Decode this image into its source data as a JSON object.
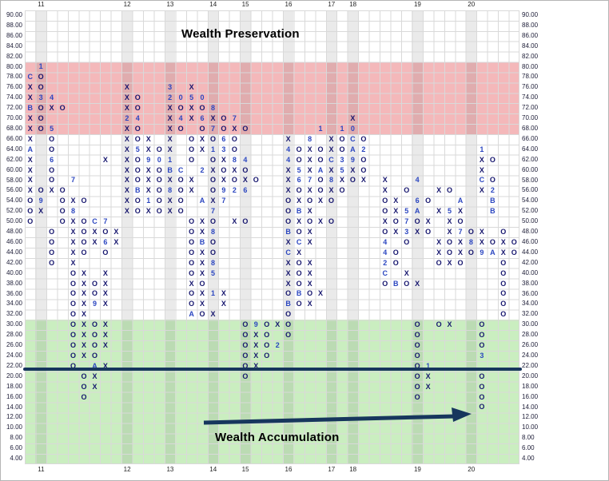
{
  "titles": {
    "top": "Wealth Preservation",
    "bottom": "Wealth Accumulation"
  },
  "colors": {
    "grid_line": "#d9d9d9",
    "mark_symbol": "#15156e",
    "mark_number": "#2b46c0",
    "preservation_band": "rgba(235,125,130,0.55)",
    "accumulation_band": "rgba(150,222,130,0.5)",
    "trend": "#17365d"
  },
  "chart_data": {
    "type": "point-and-figure",
    "box_size": 2,
    "price_top": 90,
    "price_bottom": 4,
    "zones": [
      {
        "name": "Wealth Preservation band",
        "from": 68,
        "to": 80,
        "color": "rgba(235,125,130,0.55)"
      },
      {
        "name": "Wealth Accumulation band",
        "from": 4,
        "to": 30,
        "color": "rgba(150,222,130,0.5)"
      }
    ],
    "trend_line": {
      "price": 21.4,
      "color": "#17365d"
    },
    "year_columns": [
      {
        "label": "11",
        "col": 1
      },
      {
        "label": "12",
        "col": 9
      },
      {
        "label": "13",
        "col": 13
      },
      {
        "label": "14",
        "col": 17
      },
      {
        "label": "15",
        "col": 20
      },
      {
        "label": "16",
        "col": 24
      },
      {
        "label": "17",
        "col": 28
      },
      {
        "label": "18",
        "col": 30
      },
      {
        "label": "19",
        "col": 36
      },
      {
        "label": "20",
        "col": 41
      }
    ],
    "rows": [
      {
        "price": "90.00",
        "cells": ""
      },
      {
        "price": "88.00",
        "cells": ""
      },
      {
        "price": "86.00",
        "cells": ""
      },
      {
        "price": "84.00",
        "cells": ""
      },
      {
        "price": "82.00",
        "cells": ""
      },
      {
        "price": "80.00",
        "cells": " 1"
      },
      {
        "price": "78.00",
        "cells": "CO"
      },
      {
        "price": "76.00",
        "cells": "XO       X   3 X"
      },
      {
        "price": "74.00",
        "cells": "X34      XO  2050"
      },
      {
        "price": "72.00",
        "cells": "BOXO     XO  XOXO8"
      },
      {
        "price": "70.00",
        "cells": "XO       24  X4X6XO7          X"
      },
      {
        "price": "68.00",
        "cells": "XO5      XO  XO O7OXO      1 10"
      },
      {
        "price": "66.00",
        "cells": "X O      XOX X OXO6O    X 8 XOCO"
      },
      {
        "price": "64.00",
        "cells": "A O      X5XOX OX13O    4OXOXOA2          1"
      },
      {
        "price": "62.00",
        "cells": "X 6    X XO901 O OX84   4OXOC39O          XO"
      },
      {
        "price": "60.00",
        "cells": "X O      XOXOBC 2XOXO   X5XAX5XO          X"
      },
      {
        "price": "58.00",
        "cells": "X O 7    XOXOXOX OXOXO  X67O8XOX X  4     CO"
      },
      {
        "price": "56.00",
        "cells": "XOXO     XBXO8OX O926   XOXOXO   X O  XO  X2"
      },
      {
        "price": "54.00",
        "cells": "O9 OXO   XO1OXO AX7     OXOXO    OX 6O  A  B"
      },
      {
        "price": "52.00",
        "cells": "OX O8    XOXOXO  7      OBX      OX5A X5X  B"
      },
      {
        "price": "50.00",
        "cells": "O  OXOC7       OXO XO   OXOXO    XO7OX XO"
      },
      {
        "price": "48.00",
        "cells": "  O XOXOX      OX8      BOX      OX3XO X7OX O"
      },
      {
        "price": "46.00",
        "cells": "  O XOX6X      OBO      XCX      4 O  XOX8XOXO"
      },
      {
        "price": "44.00",
        "cells": "  O XO O       OXO      CX       4O   XOXO9AXO"
      },
      {
        "price": "42.00",
        "cells": "  O X          OX8      XOX      2O   OXO   O"
      },
      {
        "price": "40.00",
        "cells": "    OX X       OX5      XOX      C X        O"
      },
      {
        "price": "38.00",
        "cells": "    OXOX       XO       XOX      OBOX       O"
      },
      {
        "price": "36.00",
        "cells": "    OXOX       OX1X     OBOX                O"
      },
      {
        "price": "34.00",
        "cells": "    OX9X       OX X     BOX                 O"
      },
      {
        "price": "32.00",
        "cells": "    OX         AOX      O                   O"
      },
      {
        "price": "30.00",
        "cells": "    OXOX            O9OXO           O OX  O"
      },
      {
        "price": "28.00",
        "cells": "    OXOX            OXO O           O     O"
      },
      {
        "price": "26.00",
        "cells": "    OXOX            OXO2            O     O"
      },
      {
        "price": "24.00",
        "cells": "    OXO             OXO             O     3"
      },
      {
        "price": "22.00",
        "cells": "    O AX            OX              O1"
      },
      {
        "price": "20.00",
        "cells": "     OX             O               OX    O"
      },
      {
        "price": "18.00",
        "cells": "     OX                             OX    O"
      },
      {
        "price": "16.00",
        "cells": "     O                              O     O"
      },
      {
        "price": "14.00",
        "cells": "                                          O"
      },
      {
        "price": "12.00",
        "cells": ""
      },
      {
        "price": "10.00",
        "cells": ""
      },
      {
        "price": "8.00",
        "cells": ""
      },
      {
        "price": "6.00",
        "cells": ""
      },
      {
        "price": "4.00",
        "cells": ""
      }
    ]
  }
}
